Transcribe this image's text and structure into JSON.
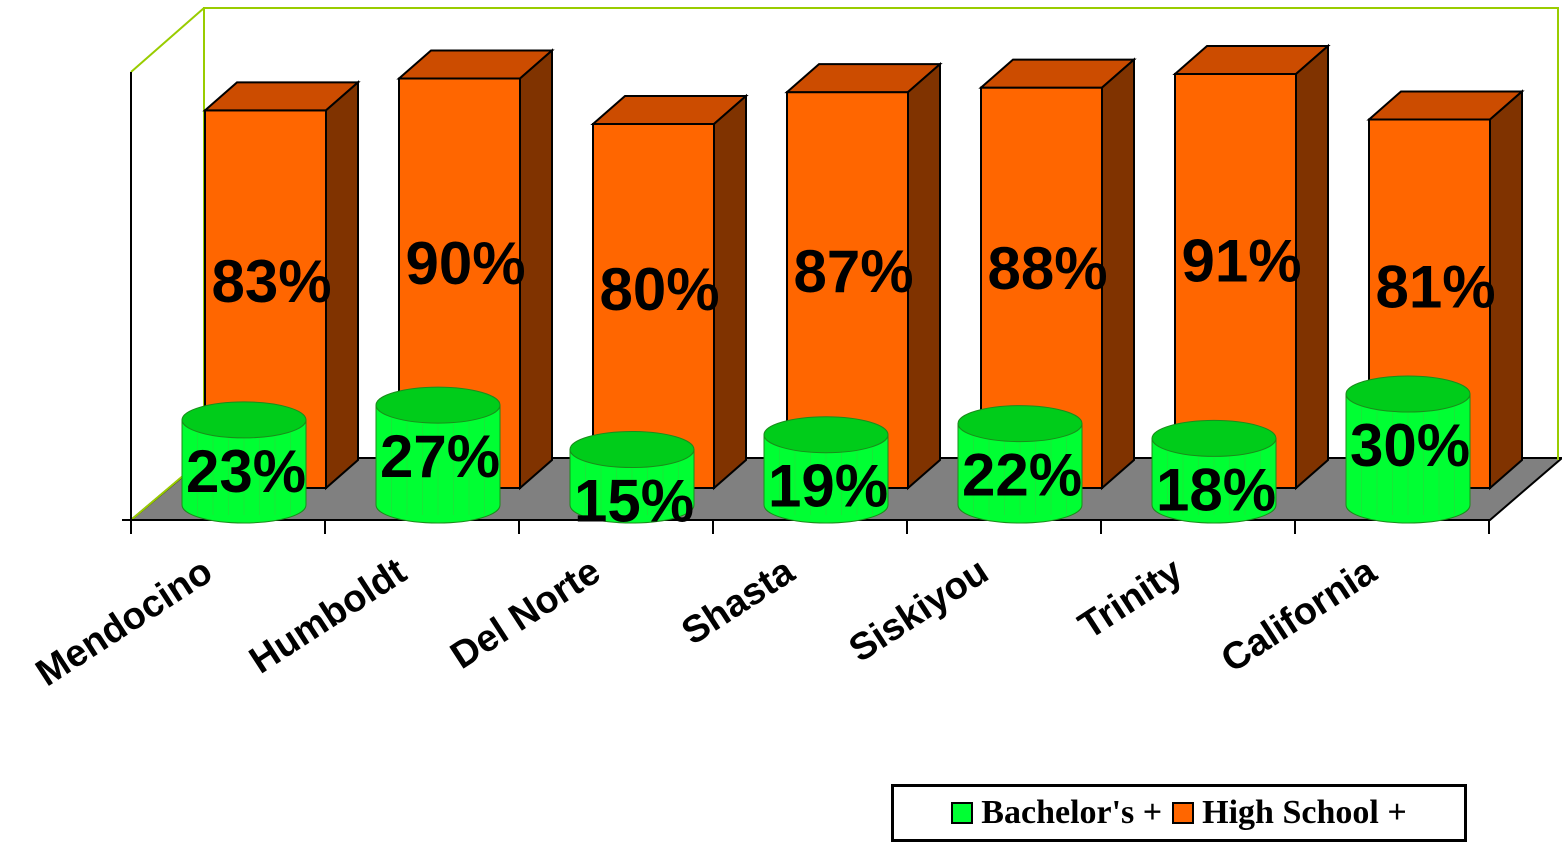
{
  "chart_data": {
    "type": "bar",
    "title": "",
    "xlabel": "",
    "ylabel": "",
    "ylim": [
      0,
      100
    ],
    "categories": [
      "Mendocino",
      "Humboldt",
      "Del Norte",
      "Shasta",
      "Siskiyou",
      "Trinity",
      "California"
    ],
    "series": [
      {
        "name": "Bachelor's +",
        "values": [
          23,
          27,
          15,
          19,
          22,
          18,
          30
        ],
        "labels": [
          "23%",
          "27%",
          "15%",
          "19%",
          "22%",
          "18%",
          "30%"
        ],
        "color": "#00FF33",
        "shape": "cylinder"
      },
      {
        "name": "High School +",
        "values": [
          83,
          90,
          80,
          87,
          88,
          91,
          81
        ],
        "labels": [
          "83%",
          "90%",
          "80%",
          "87%",
          "88%",
          "91%",
          "81%"
        ],
        "color": "#FF6600",
        "shape": "box"
      }
    ],
    "legend_position": "bottom-right",
    "grid": false
  }
}
